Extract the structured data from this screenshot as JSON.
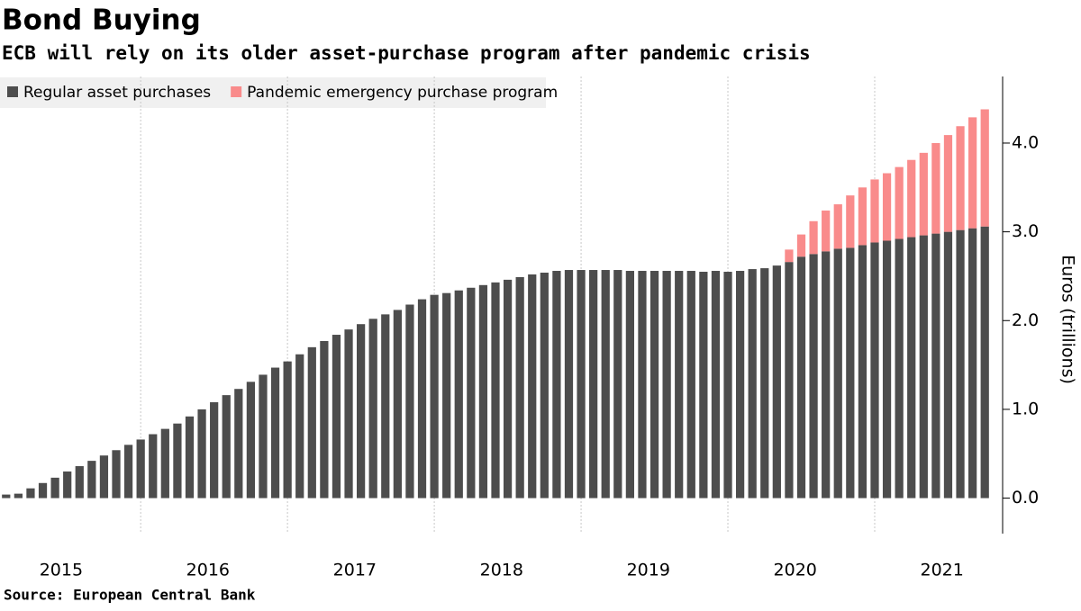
{
  "chart_data": {
    "type": "stacked_bar",
    "title": "Bond Buying",
    "subtitle": "ECB will rely on its older asset-purchase program after pandemic crisis",
    "y_axis_label": "Euros (trillions)",
    "source": "Source: European Central Bank",
    "categories": [
      null,
      null,
      null,
      null,
      null,
      "2015",
      null,
      null,
      null,
      null,
      null,
      null,
      null,
      null,
      null,
      null,
      null,
      "2016",
      null,
      null,
      null,
      null,
      null,
      null,
      null,
      null,
      null,
      null,
      null,
      "2017",
      null,
      null,
      null,
      null,
      null,
      null,
      null,
      null,
      null,
      null,
      null,
      "2018",
      null,
      null,
      null,
      null,
      null,
      null,
      null,
      null,
      null,
      null,
      null,
      "2019",
      null,
      null,
      null,
      null,
      null,
      null,
      null,
      null,
      null,
      null,
      null,
      "2020",
      null,
      null,
      null,
      null,
      null,
      null,
      null,
      null,
      null,
      null,
      null,
      "2021",
      null,
      null,
      null
    ],
    "series": [
      {
        "name": "Regular asset purchases",
        "color": "#4d4d4d",
        "values": [
          0.04,
          0.05,
          0.11,
          0.17,
          0.23,
          0.3,
          0.36,
          0.42,
          0.48,
          0.54,
          0.6,
          0.66,
          0.72,
          0.78,
          0.84,
          0.92,
          1.0,
          1.08,
          1.16,
          1.23,
          1.31,
          1.39,
          1.47,
          1.54,
          1.62,
          1.7,
          1.77,
          1.84,
          1.9,
          1.96,
          2.02,
          2.07,
          2.12,
          2.18,
          2.24,
          2.29,
          2.31,
          2.34,
          2.37,
          2.4,
          2.43,
          2.46,
          2.49,
          2.52,
          2.54,
          2.56,
          2.57,
          2.57,
          2.57,
          2.57,
          2.57,
          2.56,
          2.56,
          2.56,
          2.56,
          2.56,
          2.56,
          2.55,
          2.56,
          2.55,
          2.56,
          2.58,
          2.59,
          2.62,
          2.66,
          2.72,
          2.75,
          2.78,
          2.81,
          2.82,
          2.85,
          2.88,
          2.9,
          2.92,
          2.94,
          2.96,
          2.98,
          3.0,
          3.02,
          3.04,
          3.06
        ]
      },
      {
        "name": "Pandemic emergency purchase program",
        "color": "#f98b8b",
        "values": [
          0,
          0,
          0,
          0,
          0,
          0,
          0,
          0,
          0,
          0,
          0,
          0,
          0,
          0,
          0,
          0,
          0,
          0,
          0,
          0,
          0,
          0,
          0,
          0,
          0,
          0,
          0,
          0,
          0,
          0,
          0,
          0,
          0,
          0,
          0,
          0,
          0,
          0,
          0,
          0,
          0,
          0,
          0,
          0,
          0,
          0,
          0,
          0,
          0,
          0,
          0,
          0,
          0,
          0,
          0,
          0,
          0,
          0,
          0,
          0,
          0,
          0,
          0,
          0,
          0.14,
          0.25,
          0.37,
          0.46,
          0.5,
          0.59,
          0.65,
          0.71,
          0.76,
          0.81,
          0.87,
          0.93,
          1.02,
          1.09,
          1.17,
          1.25,
          1.32
        ]
      }
    ],
    "ylim": [
      -0.4,
      4.75
    ],
    "yticks": [
      {
        "value": 0,
        "label": "0.0"
      },
      {
        "value": 1,
        "label": "1.0"
      },
      {
        "value": 2,
        "label": "2.0"
      },
      {
        "value": 3,
        "label": "3.0"
      },
      {
        "value": 4,
        "label": "4.0"
      }
    ],
    "legend": "top-left"
  }
}
